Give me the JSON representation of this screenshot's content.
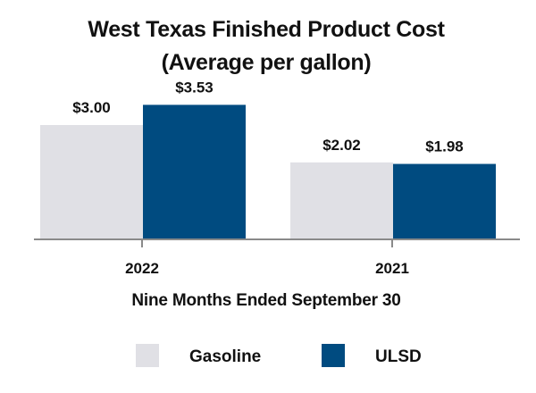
{
  "chart_data": {
    "type": "bar",
    "title": "West Texas Finished Product Cost",
    "subtitle": "(Average per gallon)",
    "categories": [
      "2022",
      "2021"
    ],
    "series": [
      {
        "name": "Gasoline",
        "color": "#e0e0e5",
        "values": [
          3.0,
          2.02
        ],
        "labels": [
          "$3.00",
          "$2.02"
        ]
      },
      {
        "name": "ULSD",
        "color": "#004b80",
        "values": [
          3.53,
          1.98
        ],
        "labels": [
          "$3.53",
          "$1.98"
        ]
      }
    ],
    "xlabel": "Nine Months Ended September 30",
    "ylabel": "",
    "ylim": [
      0,
      5.0
    ],
    "grid": false,
    "legend": "bottom"
  }
}
